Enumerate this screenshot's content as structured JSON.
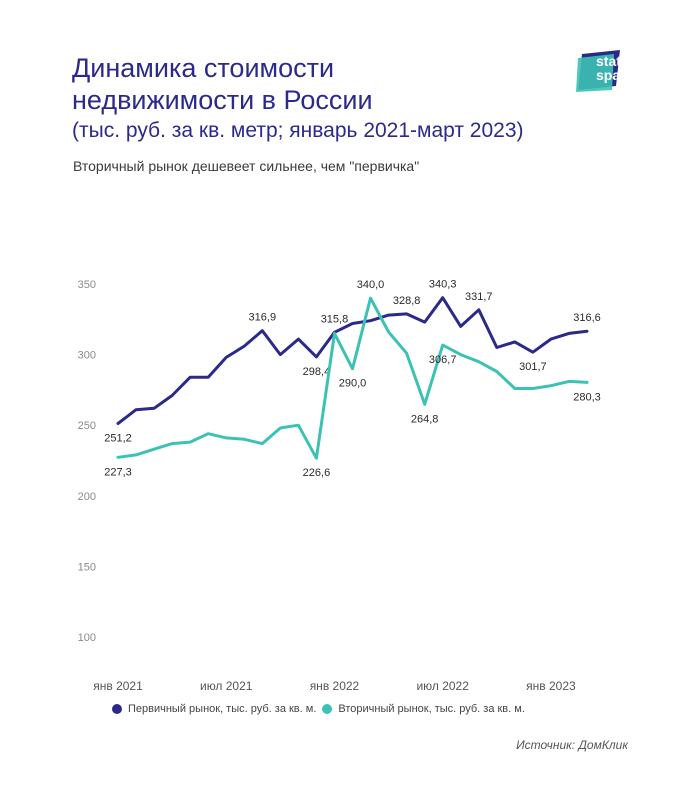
{
  "header": {
    "title_line1": "Динамика стоимости",
    "title_line2": "недвижимости в России",
    "title_line3": "(тыс. руб. за кв. метр; январь 2021-март 2023)",
    "subtitle": "Вторичный рынок дешевеет сильнее, чем \"первичка\""
  },
  "logo": {
    "line1": "stat",
    "line2": "space"
  },
  "source": "Источник: ДомКлик",
  "colors": {
    "primary": "#2b2a8a",
    "secondary": "#3cc2b4",
    "title": "#2b2a8a",
    "tick": "#8a8a8a"
  },
  "chart_data": {
    "type": "line",
    "title": "Динамика стоимости недвижимости в России",
    "subtitle": "(тыс. руб. за кв. метр; январь 2021-март 2023)",
    "ylim": [
      100,
      350
    ],
    "yticks": [
      "350",
      "300",
      "250",
      "200",
      "150",
      "100"
    ],
    "xticks": [
      {
        "label": "янв 2021",
        "index": 0
      },
      {
        "label": "июл 2021",
        "index": 6
      },
      {
        "label": "янв 2022",
        "index": 12
      },
      {
        "label": "июл 2022",
        "index": 18
      },
      {
        "label": "янв 2023",
        "index": 24
      }
    ],
    "x": [
      "янв 2021",
      "фев 2021",
      "мар 2021",
      "апр 2021",
      "май 2021",
      "июн 2021",
      "июл 2021",
      "авг 2021",
      "сен 2021",
      "окт 2021",
      "ноя 2021",
      "дек 2021",
      "янв 2022",
      "фев 2022",
      "мар 2022",
      "апр 2022",
      "май 2022",
      "июн 2022",
      "июл 2022",
      "авг 2022",
      "сен 2022",
      "окт 2022",
      "ноя 2022",
      "дек 2022",
      "янв 2023",
      "фев 2023",
      "мар 2023"
    ],
    "series": [
      {
        "name": "Первичный рынок, тыс. руб. за кв. м.",
        "color": "#2b2a8a",
        "values": [
          251.2,
          261.0,
          262.0,
          271.0,
          284.0,
          284.0,
          298.0,
          306.0,
          316.9,
          300.0,
          311.0,
          298.4,
          315.8,
          322.0,
          324.0,
          328.0,
          328.8,
          323.0,
          340.3,
          320.0,
          331.7,
          305.0,
          309.0,
          301.7,
          311.0,
          315.0,
          316.6
        ],
        "labels": [
          {
            "index": 0,
            "text": "251,2",
            "pos": "below"
          },
          {
            "index": 8,
            "text": "316,9",
            "pos": "above"
          },
          {
            "index": 11,
            "text": "298,4",
            "pos": "below"
          },
          {
            "index": 12,
            "text": "315,8",
            "pos": "above"
          },
          {
            "index": 16,
            "text": "328,8",
            "pos": "above"
          },
          {
            "index": 18,
            "text": "340,3",
            "pos": "above"
          },
          {
            "index": 20,
            "text": "331,7",
            "pos": "above"
          },
          {
            "index": 23,
            "text": "301,7",
            "pos": "below"
          },
          {
            "index": 26,
            "text": "316,6",
            "pos": "above"
          }
        ]
      },
      {
        "name": "Вторичный рынок, тыс. руб. за кв. м.",
        "color": "#3cc2b4",
        "values": [
          227.3,
          229.0,
          233.0,
          237.0,
          238.0,
          244.0,
          241.0,
          240.0,
          237.0,
          248.0,
          250.0,
          226.6,
          315.0,
          290.0,
          340.0,
          316.0,
          301.0,
          264.8,
          306.7,
          300.0,
          295.0,
          288.0,
          276.0,
          276.0,
          278.0,
          281.0,
          280.3
        ],
        "labels": [
          {
            "index": 0,
            "text": "227,3",
            "pos": "below"
          },
          {
            "index": 11,
            "text": "226,6",
            "pos": "below"
          },
          {
            "index": 13,
            "text": "290,0",
            "pos": "below"
          },
          {
            "index": 14,
            "text": "340,0",
            "pos": "above"
          },
          {
            "index": 17,
            "text": "264,8",
            "pos": "below"
          },
          {
            "index": 18,
            "text": "306,7",
            "pos": "below"
          },
          {
            "index": 26,
            "text": "280,3",
            "pos": "below"
          }
        ]
      }
    ],
    "grid": false,
    "legend": "bottom"
  }
}
